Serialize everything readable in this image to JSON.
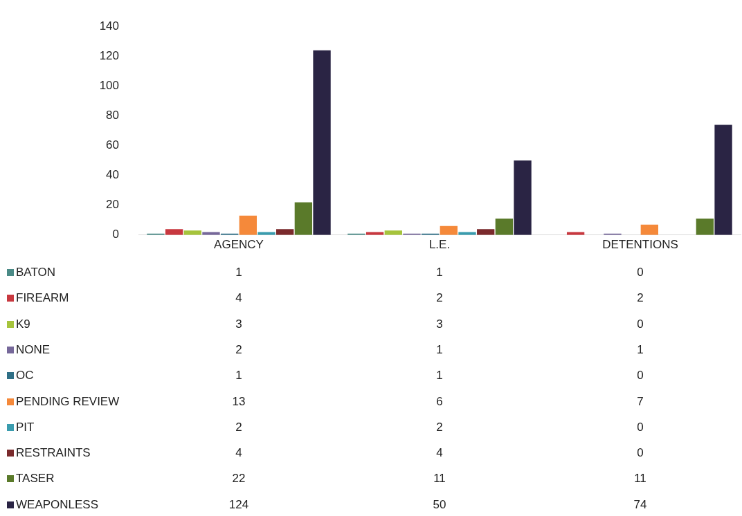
{
  "chart_data": {
    "type": "bar",
    "categories": [
      "AGENCY",
      "L.E.",
      "DETENTIONS"
    ],
    "series": [
      {
        "name": "BATON",
        "color": "#4a8a86",
        "values": [
          1,
          1,
          0
        ]
      },
      {
        "name": "FIREARM",
        "color": "#c8383f",
        "values": [
          4,
          2,
          2
        ]
      },
      {
        "name": "K9",
        "color": "#a6c43c",
        "values": [
          3,
          3,
          0
        ]
      },
      {
        "name": "NONE",
        "color": "#76689a",
        "values": [
          2,
          1,
          1
        ]
      },
      {
        "name": "OC",
        "color": "#2f6f86",
        "values": [
          1,
          1,
          0
        ]
      },
      {
        "name": "PENDING REVIEW",
        "color": "#f5893a",
        "values": [
          13,
          6,
          7
        ]
      },
      {
        "name": "PIT",
        "color": "#3a9cae",
        "values": [
          2,
          2,
          0
        ]
      },
      {
        "name": "RESTRAINTS",
        "color": "#7a2a2c",
        "values": [
          4,
          4,
          0
        ]
      },
      {
        "name": "TASER",
        "color": "#5a7a2a",
        "values": [
          22,
          11,
          11
        ]
      },
      {
        "name": "WEAPONLESS",
        "color": "#2a2444",
        "values": [
          124,
          50,
          74
        ]
      }
    ],
    "ylim": [
      0,
      140
    ],
    "yticks": [
      0,
      20,
      40,
      60,
      80,
      100,
      120,
      140
    ],
    "grid": false,
    "legend": "bottom",
    "data_labels": true
  }
}
